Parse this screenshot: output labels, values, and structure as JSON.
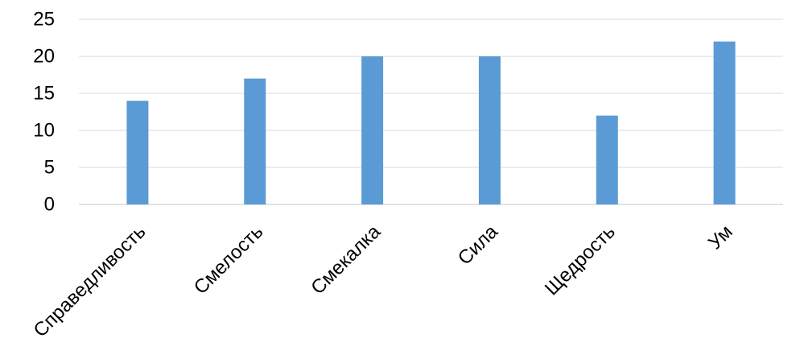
{
  "chart_data": {
    "type": "bar",
    "categories": [
      "Справедливость",
      "Смелость",
      "Смекалка",
      "Сила",
      "Щедрость",
      "Ум"
    ],
    "values": [
      14,
      17,
      20,
      20,
      12,
      22
    ],
    "ylim": [
      0,
      25
    ],
    "yticks": [
      "0",
      "5",
      "10",
      "15",
      "20",
      "25"
    ],
    "grid": true,
    "legend": "none",
    "title": "",
    "xlabel": "",
    "ylabel": "",
    "colors": {
      "bar": "#5b9bd5",
      "grid": "#d9d9d9",
      "axis": "#d9d9d9",
      "text": "#000000"
    }
  }
}
